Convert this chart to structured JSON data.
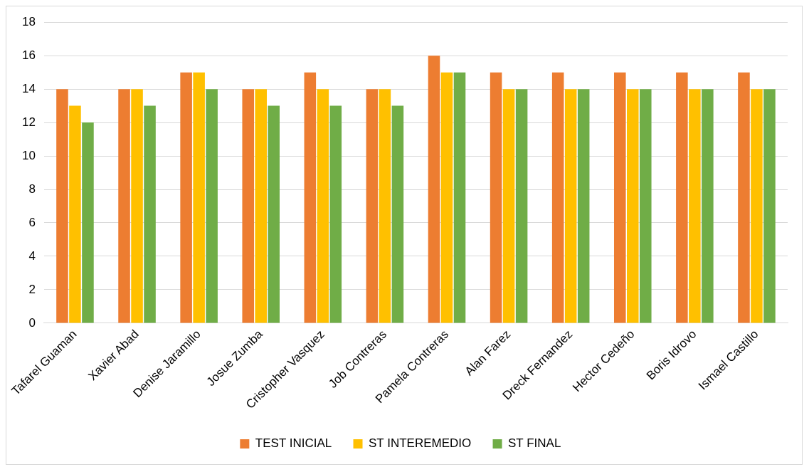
{
  "chart_data": {
    "type": "bar",
    "categories": [
      "Tafarel Guaman",
      "Xavier Abad",
      "Denise Jaramillo",
      "Josue Zumba",
      "Cristopher Vasquez",
      "Job Contreras",
      "Pamela Contreras",
      "Alan Farez",
      "Dreck Fernandez",
      "Hector Cedeño",
      "Boris Idrovo",
      "Ismael Castillo"
    ],
    "series": [
      {
        "name": "TEST INICIAL",
        "color": "#ed7d31",
        "values": [
          14,
          14,
          15,
          14,
          15,
          14,
          16,
          15,
          15,
          15,
          15,
          15
        ]
      },
      {
        "name": "ST INTEREMEDIO",
        "color": "#ffc000",
        "values": [
          13,
          14,
          15,
          14,
          14,
          14,
          15,
          14,
          14,
          14,
          14,
          14
        ]
      },
      {
        "name": "ST FINAL",
        "color": "#70ad47",
        "values": [
          12,
          13,
          14,
          13,
          13,
          13,
          15,
          14,
          14,
          14,
          14,
          14
        ]
      }
    ],
    "ylim": [
      0,
      18
    ],
    "yticks": [
      0,
      2,
      4,
      6,
      8,
      10,
      12,
      14,
      16,
      18
    ],
    "grid": "y",
    "legend": "bottom"
  }
}
